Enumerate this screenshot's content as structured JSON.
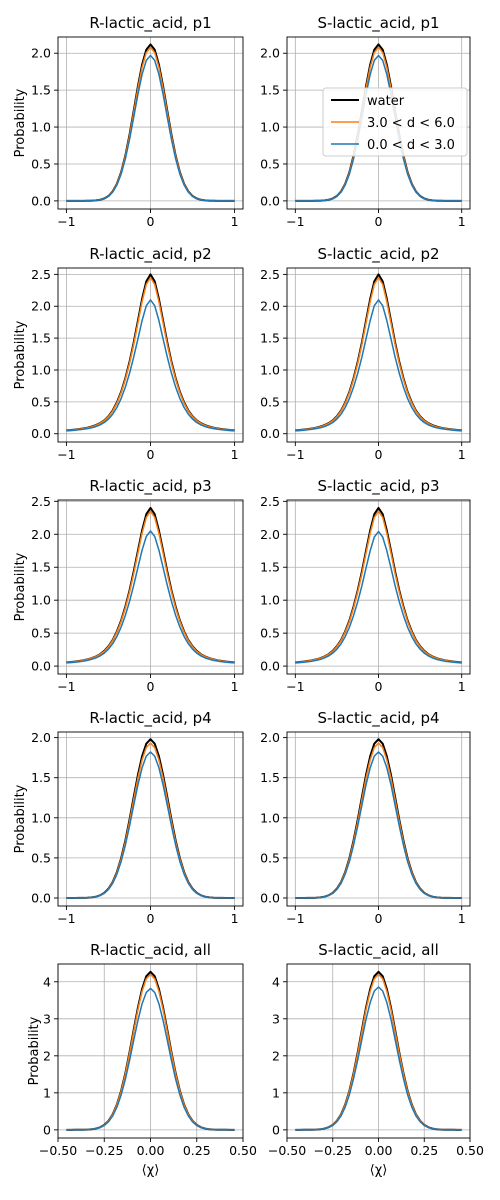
{
  "figure": {
    "legend": {
      "placement": "center-right of S-lactic_acid, p1",
      "entries": [
        {
          "label": "water",
          "color": "#000000"
        },
        {
          "label": "3.0 < d < 6.0",
          "color": "#ff7f0e"
        },
        {
          "label": "0.0 < d < 3.0",
          "color": "#1f77b4"
        }
      ]
    },
    "series_colors": {
      "water": "#000000",
      "d_3_6": "#ff7f0e",
      "d_0_3": "#1f77b4"
    }
  },
  "chart_data": [
    {
      "type": "line",
      "title": "R-lactic_acid, p1",
      "xlabel": "",
      "ylabel": "Probability",
      "xlim": [
        -1.1,
        1.1
      ],
      "ylim": [
        -0.11,
        2.22
      ],
      "xticks": [
        -1,
        0,
        1
      ],
      "xtick_labels": [
        "−1",
        "0",
        "1"
      ],
      "yticks": [
        0,
        0.5,
        1,
        1.5,
        2
      ],
      "ytick_labels": [
        "0.0",
        "0.5",
        "1.0",
        "1.5",
        "2.0"
      ],
      "grid": true,
      "profile": "gauss",
      "width": 0.19,
      "series": [
        {
          "name": "water",
          "peak": 2.12
        },
        {
          "name": "3.0 < d < 6.0",
          "peak": 2.08
        },
        {
          "name": "0.0 < d < 3.0",
          "peak": 1.97
        }
      ]
    },
    {
      "type": "line",
      "title": "S-lactic_acid, p1",
      "xlabel": "",
      "ylabel": "",
      "xlim": [
        -1.1,
        1.1
      ],
      "ylim": [
        -0.11,
        2.22
      ],
      "xticks": [
        -1,
        0,
        1
      ],
      "xtick_labels": [
        "−1",
        "0",
        "1"
      ],
      "yticks": [
        0,
        0.5,
        1,
        1.5,
        2
      ],
      "ytick_labels": [
        "0.0",
        "0.5",
        "1.0",
        "1.5",
        "2.0"
      ],
      "grid": true,
      "profile": "gauss",
      "width": 0.19,
      "series": [
        {
          "name": "water",
          "peak": 2.12
        },
        {
          "name": "3.0 < d < 6.0",
          "peak": 2.08
        },
        {
          "name": "0.0 < d < 3.0",
          "peak": 1.97
        }
      ]
    },
    {
      "type": "line",
      "title": "R-lactic_acid, p2",
      "xlabel": "",
      "ylabel": "Probability",
      "xlim": [
        -1.1,
        1.1
      ],
      "ylim": [
        -0.13,
        2.6
      ],
      "xticks": [
        -1,
        0,
        1
      ],
      "xtick_labels": [
        "−1",
        "0",
        "1"
      ],
      "yticks": [
        0,
        0.5,
        1,
        1.5,
        2,
        2.5
      ],
      "ytick_labels": [
        "0.0",
        "0.5",
        "1.0",
        "1.5",
        "2.0",
        "2.5"
      ],
      "grid": true,
      "profile": "lorentz",
      "width": 0.2,
      "series": [
        {
          "name": "water",
          "peak": 2.5
        },
        {
          "name": "3.0 < d < 6.0",
          "peak": 2.45
        },
        {
          "name": "0.0 < d < 3.0",
          "peak": 2.1
        }
      ]
    },
    {
      "type": "line",
      "title": "S-lactic_acid, p2",
      "xlabel": "",
      "ylabel": "",
      "xlim": [
        -1.1,
        1.1
      ],
      "ylim": [
        -0.13,
        2.6
      ],
      "xticks": [
        -1,
        0,
        1
      ],
      "xtick_labels": [
        "−1",
        "0",
        "1"
      ],
      "yticks": [
        0,
        0.5,
        1,
        1.5,
        2,
        2.5
      ],
      "ytick_labels": [
        "0.0",
        "0.5",
        "1.0",
        "1.5",
        "2.0",
        "2.5"
      ],
      "grid": true,
      "profile": "lorentz",
      "width": 0.2,
      "series": [
        {
          "name": "water",
          "peak": 2.5
        },
        {
          "name": "3.0 < d < 6.0",
          "peak": 2.45
        },
        {
          "name": "0.0 < d < 3.0",
          "peak": 2.1
        }
      ]
    },
    {
      "type": "line",
      "title": "R-lactic_acid, p3",
      "xlabel": "",
      "ylabel": "Probability",
      "xlim": [
        -1.1,
        1.1
      ],
      "ylim": [
        -0.12,
        2.52
      ],
      "xticks": [
        -1,
        0,
        1
      ],
      "xtick_labels": [
        "−1",
        "0",
        "1"
      ],
      "yticks": [
        0,
        0.5,
        1,
        1.5,
        2,
        2.5
      ],
      "ytick_labels": [
        "0.0",
        "0.5",
        "1.0",
        "1.5",
        "2.0",
        "2.5"
      ],
      "grid": true,
      "profile": "lorentz",
      "width": 0.21,
      "series": [
        {
          "name": "water",
          "peak": 2.4
        },
        {
          "name": "3.0 < d < 6.0",
          "peak": 2.35
        },
        {
          "name": "0.0 < d < 3.0",
          "peak": 2.05
        }
      ]
    },
    {
      "type": "line",
      "title": "S-lactic_acid, p3",
      "xlabel": "",
      "ylabel": "",
      "xlim": [
        -1.1,
        1.1
      ],
      "ylim": [
        -0.12,
        2.52
      ],
      "xticks": [
        -1,
        0,
        1
      ],
      "xtick_labels": [
        "−1",
        "0",
        "1"
      ],
      "yticks": [
        0,
        0.5,
        1,
        1.5,
        2,
        2.5
      ],
      "ytick_labels": [
        "0.0",
        "0.5",
        "1.0",
        "1.5",
        "2.0",
        "2.5"
      ],
      "grid": true,
      "profile": "lorentz",
      "width": 0.21,
      "series": [
        {
          "name": "water",
          "peak": 2.4
        },
        {
          "name": "3.0 < d < 6.0",
          "peak": 2.35
        },
        {
          "name": "0.0 < d < 3.0",
          "peak": 2.04
        }
      ]
    },
    {
      "type": "line",
      "title": "R-lactic_acid, p4",
      "xlabel": "",
      "ylabel": "Probability",
      "xlim": [
        -1.1,
        1.1
      ],
      "ylim": [
        -0.1,
        2.07
      ],
      "xticks": [
        -1,
        0,
        1
      ],
      "xtick_labels": [
        "−1",
        "0",
        "1"
      ],
      "yticks": [
        0,
        0.5,
        1,
        1.5,
        2
      ],
      "ytick_labels": [
        "0.0",
        "0.5",
        "1.0",
        "1.5",
        "2.0"
      ],
      "grid": true,
      "profile": "gauss",
      "width": 0.21,
      "series": [
        {
          "name": "water",
          "peak": 1.98
        },
        {
          "name": "3.0 < d < 6.0",
          "peak": 1.93
        },
        {
          "name": "0.0 < d < 3.0",
          "peak": 1.82
        }
      ]
    },
    {
      "type": "line",
      "title": "S-lactic_acid, p4",
      "xlabel": "",
      "ylabel": "",
      "xlim": [
        -1.1,
        1.1
      ],
      "ylim": [
        -0.1,
        2.07
      ],
      "xticks": [
        -1,
        0,
        1
      ],
      "xtick_labels": [
        "−1",
        "0",
        "1"
      ],
      "yticks": [
        0,
        0.5,
        1,
        1.5,
        2
      ],
      "ytick_labels": [
        "0.0",
        "0.5",
        "1.0",
        "1.5",
        "2.0"
      ],
      "grid": true,
      "profile": "gauss",
      "width": 0.21,
      "series": [
        {
          "name": "water",
          "peak": 1.98
        },
        {
          "name": "3.0 < d < 6.0",
          "peak": 1.93
        },
        {
          "name": "0.0 < d < 3.0",
          "peak": 1.82
        }
      ]
    },
    {
      "type": "line",
      "title": "R-lactic_acid, all",
      "xlabel": "⟨χ⟩",
      "ylabel": "Probability",
      "xlim": [
        -0.5,
        0.5
      ],
      "ylim": [
        -0.22,
        4.48
      ],
      "xticks": [
        -0.5,
        -0.25,
        0,
        0.25,
        0.5
      ],
      "xtick_labels": [
        "−0.50",
        "−0.25",
        "0.00",
        "0.25",
        "0.50"
      ],
      "yticks": [
        0,
        1,
        2,
        3,
        4
      ],
      "ytick_labels": [
        "0",
        "1",
        "2",
        "3",
        "4"
      ],
      "grid": true,
      "profile": "gauss",
      "width": 0.095,
      "series": [
        {
          "name": "water",
          "peak": 4.27
        },
        {
          "name": "3.0 < d < 6.0",
          "peak": 4.2
        },
        {
          "name": "0.0 < d < 3.0",
          "peak": 3.82
        }
      ]
    },
    {
      "type": "line",
      "title": "S-lactic_acid, all",
      "xlabel": "⟨χ⟩",
      "ylabel": "",
      "xlim": [
        -0.5,
        0.5
      ],
      "ylim": [
        -0.22,
        4.48
      ],
      "xticks": [
        -0.5,
        -0.25,
        0,
        0.25,
        0.5
      ],
      "xtick_labels": [
        "−0.50",
        "−0.25",
        "0.00",
        "0.25",
        "0.50"
      ],
      "yticks": [
        0,
        1,
        2,
        3,
        4
      ],
      "ytick_labels": [
        "0",
        "1",
        "2",
        "3",
        "4"
      ],
      "grid": true,
      "profile": "gauss",
      "width": 0.095,
      "series": [
        {
          "name": "water",
          "peak": 4.27
        },
        {
          "name": "3.0 < d < 6.0",
          "peak": 4.2
        },
        {
          "name": "0.0 < d < 3.0",
          "peak": 3.86
        }
      ]
    }
  ]
}
